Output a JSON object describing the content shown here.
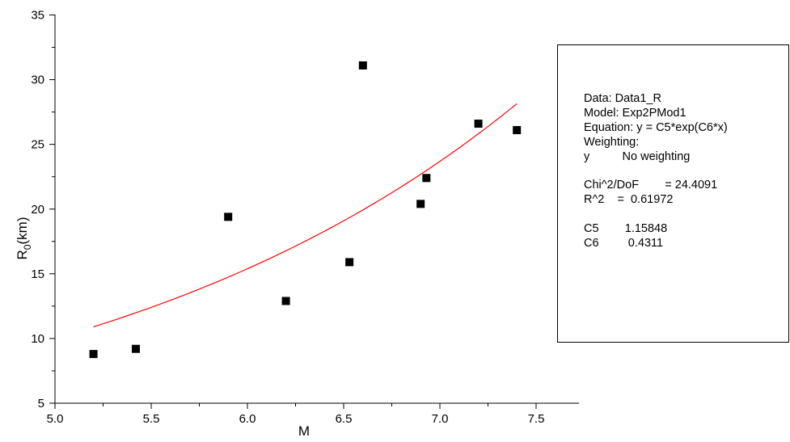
{
  "chart_data": {
    "type": "scatter",
    "xlabel": "M",
    "ylabel_main": "R",
    "ylabel_sub": "0",
    "ylabel_tail": "(km)",
    "xlim": [
      5.0,
      7.75
    ],
    "ylim": [
      5,
      35
    ],
    "xticks": [
      5.0,
      5.5,
      6.0,
      6.5,
      7.0,
      7.5
    ],
    "xtick_labels": [
      "5.0",
      "5.5",
      "6.0",
      "6.5",
      "7.0",
      "7.5"
    ],
    "yticks": [
      5,
      10,
      15,
      20,
      25,
      30,
      35
    ],
    "ytick_labels": [
      "5",
      "10",
      "15",
      "20",
      "25",
      "30",
      "35"
    ],
    "grid": false,
    "series": [
      {
        "type": "scatter",
        "marker": "square",
        "color": "#000000",
        "x": [
          5.2,
          5.42,
          5.9,
          6.2,
          6.53,
          6.6,
          6.9,
          6.93,
          7.2,
          7.4
        ],
        "y": [
          8.8,
          9.2,
          19.4,
          12.9,
          15.9,
          31.1,
          20.4,
          22.4,
          26.6,
          26.1
        ]
      },
      {
        "type": "line",
        "color": "#ff0000",
        "function": "exp",
        "C5": 1.15848,
        "C6": 0.4311,
        "x_range": [
          5.2,
          7.4
        ]
      }
    ]
  },
  "fit_info": {
    "data": "Data: Data1_R",
    "model": "Model: Exp2PMod1",
    "equation": "Equation: y = C5*exp(C6*x)",
    "weighting": "Weighting:",
    "weighting_y": "y          No weighting",
    "chi2": "Chi^2/DoF        = 24.4091",
    "r2": "R^2    =  0.61972",
    "c5": "C5        1.15848",
    "c6": "C6         0.4311"
  }
}
